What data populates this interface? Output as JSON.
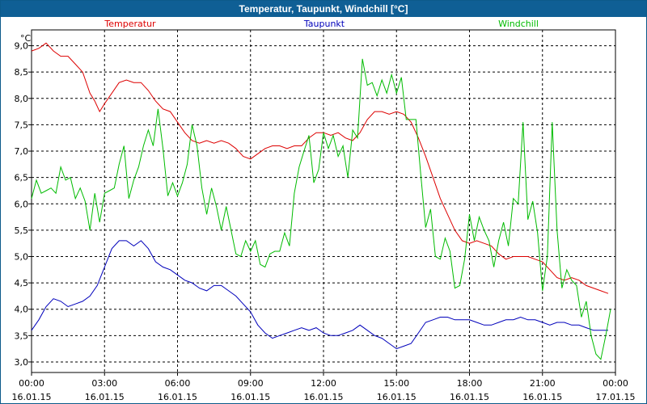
{
  "window": {
    "title": "Temperatur, Taupunkt, Windchill [°C]"
  },
  "chart_data": {
    "type": "line",
    "title": "Temperatur, Taupunkt, Windchill [°C]",
    "ylabel": "°C",
    "ylim": [
      2.8,
      9.3
    ],
    "xlim_hours": [
      0,
      24
    ],
    "grid": true,
    "legend_position": "top",
    "y_ticks": [
      "9,0",
      "8,5",
      "8,0",
      "7,5",
      "7,0",
      "6,5",
      "6,0",
      "5,5",
      "5,0",
      "4,5",
      "4,0",
      "3,5",
      "3,0"
    ],
    "y_tick_values": [
      9.0,
      8.5,
      8.0,
      7.5,
      7.0,
      6.5,
      6.0,
      5.5,
      5.0,
      4.5,
      4.0,
      3.5,
      3.0
    ],
    "x_ticks": [
      {
        "time": "00:00",
        "date": "16.01.15"
      },
      {
        "time": "03:00",
        "date": "16.01.15"
      },
      {
        "time": "06:00",
        "date": "16.01.15"
      },
      {
        "time": "09:00",
        "date": "16.01.15"
      },
      {
        "time": "12:00",
        "date": "16.01.15"
      },
      {
        "time": "15:00",
        "date": "16.01.15"
      },
      {
        "time": "18:00",
        "date": "16.01.15"
      },
      {
        "time": "21:00",
        "date": "16.01.15"
      },
      {
        "time": "00:00",
        "date": "17.01.15"
      }
    ],
    "series": [
      {
        "name": "Temperatur",
        "color": "#dd0000",
        "x": [
          0,
          0.3,
          0.6,
          0.9,
          1.2,
          1.5,
          1.8,
          2.1,
          2.4,
          2.6,
          2.8,
          3.0,
          3.3,
          3.6,
          3.9,
          4.2,
          4.5,
          4.8,
          5.1,
          5.4,
          5.7,
          6.0,
          6.3,
          6.6,
          6.9,
          7.2,
          7.5,
          7.8,
          8.1,
          8.4,
          8.7,
          9.0,
          9.3,
          9.6,
          9.9,
          10.2,
          10.5,
          10.8,
          11.1,
          11.4,
          11.7,
          12.0,
          12.3,
          12.6,
          12.9,
          13.2,
          13.5,
          13.8,
          14.1,
          14.4,
          14.7,
          15.0,
          15.3,
          15.6,
          15.9,
          16.2,
          16.5,
          16.8,
          17.1,
          17.4,
          17.7,
          18.0,
          18.3,
          18.6,
          18.9,
          19.2,
          19.5,
          19.8,
          20.1,
          20.4,
          20.7,
          21.0,
          21.3,
          21.6,
          21.9,
          22.2,
          22.5,
          22.8,
          23.1,
          23.4,
          23.7
        ],
        "y": [
          8.9,
          8.95,
          9.05,
          8.9,
          8.8,
          8.8,
          8.65,
          8.5,
          8.1,
          7.95,
          7.75,
          7.9,
          8.1,
          8.3,
          8.35,
          8.3,
          8.3,
          8.15,
          7.95,
          7.8,
          7.75,
          7.55,
          7.35,
          7.2,
          7.15,
          7.2,
          7.15,
          7.2,
          7.15,
          7.05,
          6.9,
          6.85,
          6.95,
          7.05,
          7.1,
          7.1,
          7.05,
          7.1,
          7.1,
          7.25,
          7.35,
          7.35,
          7.3,
          7.35,
          7.25,
          7.2,
          7.35,
          7.6,
          7.75,
          7.75,
          7.7,
          7.75,
          7.7,
          7.55,
          7.25,
          6.9,
          6.5,
          6.1,
          5.8,
          5.5,
          5.3,
          5.25,
          5.3,
          5.25,
          5.2,
          5.05,
          4.95,
          5.0,
          5.0,
          5.0,
          4.95,
          4.9,
          4.75,
          4.6,
          4.55,
          4.6,
          4.55,
          4.45,
          4.4,
          4.35,
          4.3
        ]
      },
      {
        "name": "Taupunkt",
        "color": "#0000bb",
        "x": [
          0,
          0.3,
          0.6,
          0.9,
          1.2,
          1.5,
          1.8,
          2.1,
          2.4,
          2.7,
          3.0,
          3.3,
          3.6,
          3.9,
          4.2,
          4.5,
          4.8,
          5.1,
          5.4,
          5.7,
          6.0,
          6.3,
          6.6,
          6.9,
          7.2,
          7.5,
          7.8,
          8.1,
          8.4,
          8.7,
          9.0,
          9.3,
          9.6,
          9.9,
          10.2,
          10.5,
          10.8,
          11.1,
          11.4,
          11.7,
          12.0,
          12.3,
          12.6,
          12.9,
          13.2,
          13.5,
          13.8,
          14.1,
          14.4,
          14.7,
          15.0,
          15.3,
          15.6,
          15.9,
          16.2,
          16.5,
          16.8,
          17.1,
          17.4,
          17.7,
          18.0,
          18.3,
          18.6,
          18.9,
          19.2,
          19.5,
          19.8,
          20.1,
          20.4,
          20.7,
          21.0,
          21.3,
          21.6,
          21.9,
          22.2,
          22.5,
          22.8,
          23.1,
          23.4,
          23.7
        ],
        "y": [
          3.6,
          3.8,
          4.05,
          4.2,
          4.15,
          4.05,
          4.1,
          4.15,
          4.25,
          4.45,
          4.8,
          5.15,
          5.3,
          5.3,
          5.2,
          5.3,
          5.15,
          4.9,
          4.8,
          4.75,
          4.65,
          4.55,
          4.5,
          4.4,
          4.35,
          4.45,
          4.45,
          4.35,
          4.25,
          4.1,
          3.95,
          3.7,
          3.55,
          3.45,
          3.5,
          3.55,
          3.6,
          3.65,
          3.6,
          3.65,
          3.55,
          3.5,
          3.5,
          3.55,
          3.6,
          3.7,
          3.6,
          3.5,
          3.45,
          3.35,
          3.25,
          3.3,
          3.35,
          3.55,
          3.75,
          3.8,
          3.85,
          3.85,
          3.8,
          3.8,
          3.8,
          3.75,
          3.7,
          3.7,
          3.75,
          3.8,
          3.8,
          3.85,
          3.8,
          3.8,
          3.75,
          3.7,
          3.75,
          3.75,
          3.7,
          3.7,
          3.65,
          3.6,
          3.6,
          3.6
        ]
      },
      {
        "name": "Windchill",
        "color": "#00bb00",
        "x": [
          0,
          0.2,
          0.4,
          0.6,
          0.8,
          1.0,
          1.2,
          1.4,
          1.6,
          1.8,
          2.0,
          2.2,
          2.4,
          2.6,
          2.8,
          3.0,
          3.2,
          3.4,
          3.6,
          3.8,
          4.0,
          4.2,
          4.4,
          4.6,
          4.8,
          5.0,
          5.2,
          5.4,
          5.6,
          5.8,
          6.0,
          6.2,
          6.4,
          6.6,
          6.8,
          7.0,
          7.2,
          7.4,
          7.6,
          7.8,
          8.0,
          8.2,
          8.4,
          8.6,
          8.8,
          9.0,
          9.2,
          9.4,
          9.6,
          9.8,
          10.0,
          10.2,
          10.4,
          10.6,
          10.8,
          11.0,
          11.2,
          11.4,
          11.6,
          11.8,
          12.0,
          12.2,
          12.4,
          12.6,
          12.8,
          13.0,
          13.2,
          13.4,
          13.6,
          13.8,
          14.0,
          14.2,
          14.4,
          14.6,
          14.8,
          15.0,
          15.2,
          15.4,
          15.6,
          15.8,
          16.0,
          16.2,
          16.4,
          16.6,
          16.8,
          17.0,
          17.2,
          17.4,
          17.6,
          17.8,
          18.0,
          18.2,
          18.4,
          18.6,
          18.8,
          19.0,
          19.2,
          19.4,
          19.6,
          19.8,
          20.0,
          20.2,
          20.4,
          20.6,
          20.8,
          21.0,
          21.2,
          21.4,
          21.6,
          21.8,
          22.0,
          22.2,
          22.4,
          22.6,
          22.8,
          23.0,
          23.2,
          23.4,
          23.6,
          23.8
        ],
        "y": [
          6.1,
          6.45,
          6.2,
          6.25,
          6.3,
          6.2,
          6.7,
          6.45,
          6.5,
          6.1,
          6.3,
          6.05,
          5.5,
          6.2,
          5.65,
          6.2,
          6.25,
          6.3,
          6.75,
          7.1,
          6.1,
          6.45,
          6.7,
          7.1,
          7.4,
          7.1,
          7.8,
          7.05,
          6.15,
          6.4,
          6.15,
          6.4,
          6.75,
          7.5,
          7.1,
          6.3,
          5.8,
          6.3,
          5.95,
          5.5,
          5.95,
          5.5,
          5.05,
          5.0,
          5.3,
          5.1,
          5.3,
          4.85,
          4.8,
          5.05,
          5.1,
          5.1,
          5.45,
          5.2,
          6.2,
          6.7,
          7.0,
          7.3,
          6.4,
          6.65,
          7.35,
          7.05,
          7.3,
          6.9,
          7.1,
          6.5,
          7.4,
          7.25,
          8.75,
          8.25,
          8.3,
          8.05,
          8.35,
          8.1,
          8.45,
          8.1,
          8.4,
          7.6,
          7.6,
          7.6,
          6.55,
          5.55,
          5.9,
          5.0,
          4.95,
          5.35,
          5.1,
          4.4,
          4.45,
          4.95,
          5.8,
          5.3,
          5.75,
          5.5,
          5.3,
          4.8,
          5.3,
          5.65,
          5.2,
          6.1,
          6.0,
          7.55,
          5.7,
          6.05,
          5.45,
          4.35,
          5.0,
          7.55,
          5.5,
          4.4,
          4.75,
          4.55,
          4.45,
          3.85,
          4.15,
          3.5,
          3.15,
          3.05,
          3.5,
          4.0
        ]
      }
    ]
  }
}
